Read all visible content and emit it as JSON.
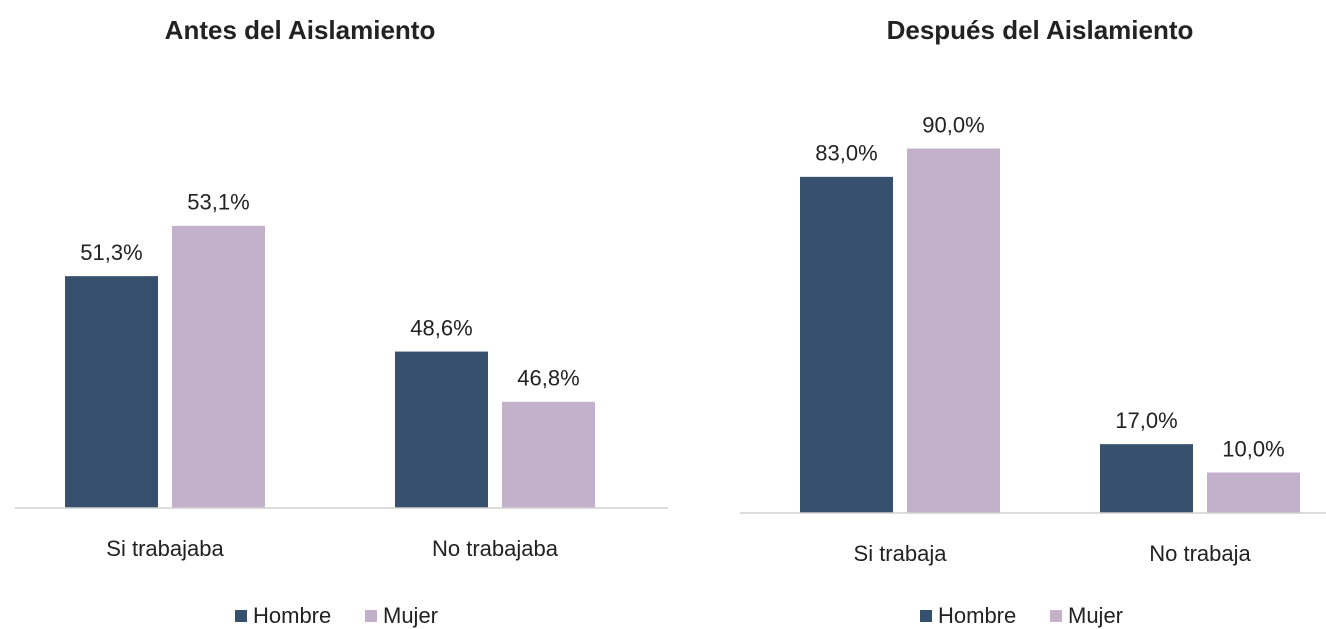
{
  "chart_data": [
    {
      "type": "bar",
      "title": "Antes del Aislamiento",
      "categories": [
        "Si trabajaba",
        "No trabajaba"
      ],
      "series": [
        {
          "name": "Hombre",
          "color": "#36506e",
          "values": [
            51.3,
            48.6
          ],
          "value_labels": [
            "51,3%",
            "48,6%"
          ]
        },
        {
          "name": "Mujer",
          "color": "#c3b1cc",
          "values": [
            53.1,
            46.8
          ],
          "value_labels": [
            "53,1%",
            "46,8%"
          ]
        }
      ],
      "ylim": [
        43,
        58
      ]
    },
    {
      "type": "bar",
      "title": "Después del Aislamiento",
      "categories": [
        "Si trabaja",
        "No trabaja"
      ],
      "series": [
        {
          "name": "Hombre",
          "color": "#36506e",
          "values": [
            83.0,
            17.0
          ],
          "value_labels": [
            "83,0%",
            "17,0%"
          ]
        },
        {
          "name": "Mujer",
          "color": "#c3b1cc",
          "values": [
            90.0,
            10.0
          ],
          "value_labels": [
            "90,0%",
            "10,0%"
          ]
        }
      ],
      "ylim": [
        0,
        100
      ]
    }
  ]
}
